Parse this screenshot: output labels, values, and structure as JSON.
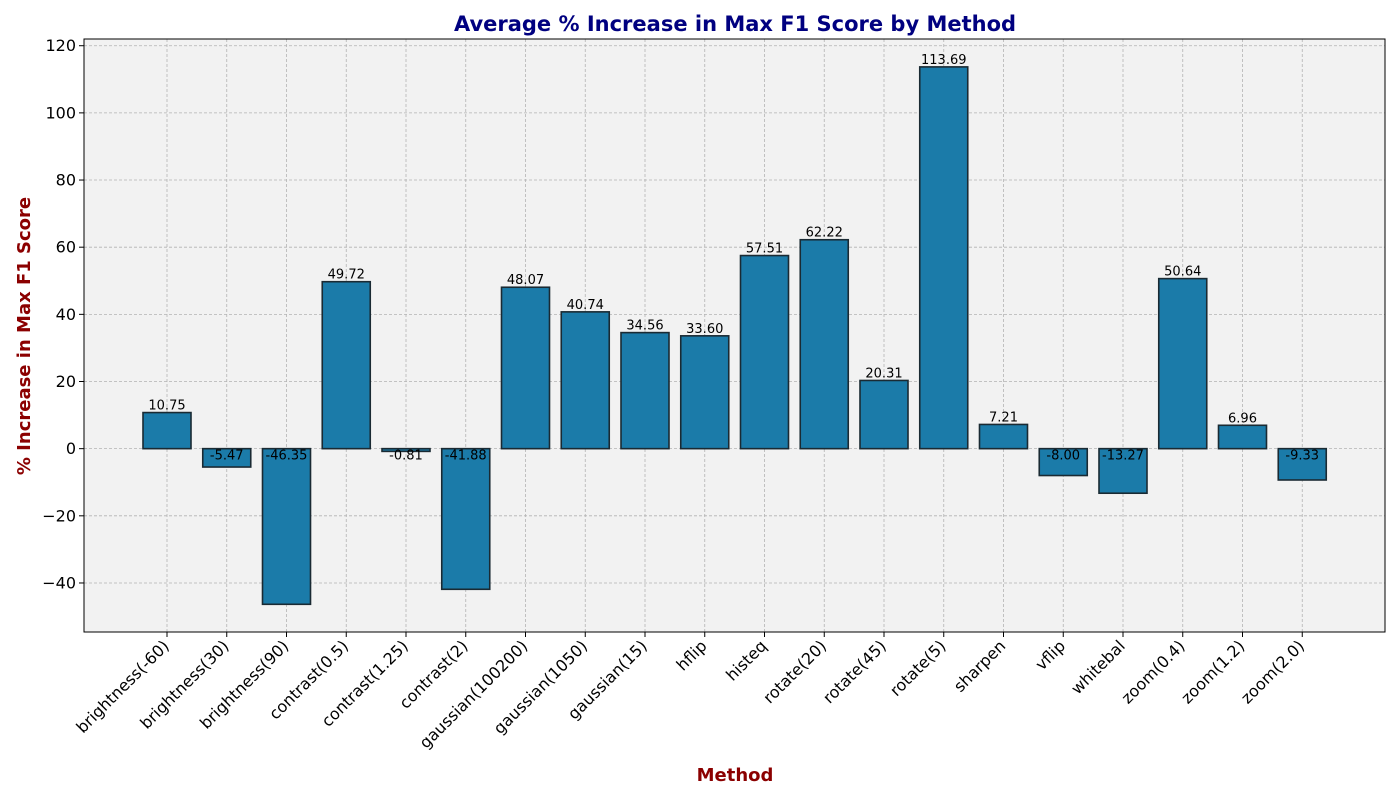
{
  "chart_data": {
    "type": "bar",
    "title": "Average % Increase in Max F1 Score by Method",
    "xlabel": "Method",
    "ylabel": "% Increase in Max F1 Score",
    "categories": [
      "brightness(-60)",
      "brightness(30)",
      "brightness(90)",
      "contrast(0.5)",
      "contrast(1.25)",
      "contrast(2)",
      "gaussian(100200)",
      "gaussian(1050)",
      "gaussian(15)",
      "hflip",
      "histeq",
      "rotate(20)",
      "rotate(45)",
      "rotate(5)",
      "sharpen",
      "vflip",
      "whitebal",
      "zoom(0.4)",
      "zoom(1.2)",
      "zoom(2.0)"
    ],
    "values": [
      10.75,
      -5.47,
      -46.35,
      49.72,
      -0.81,
      -41.88,
      48.07,
      40.74,
      34.56,
      33.6,
      57.51,
      62.22,
      20.31,
      113.69,
      7.21,
      -8.0,
      -13.27,
      50.64,
      6.96,
      -9.33
    ],
    "value_labels": [
      "10.75",
      "-5.47",
      "-46.35",
      "49.72",
      "-0.81",
      "-41.88",
      "48.07",
      "40.74",
      "34.56",
      "33.60",
      "57.51",
      "62.22",
      "20.31",
      "113.69",
      "7.21",
      "-8.00",
      "-13.27",
      "50.64",
      "6.96",
      "-9.33"
    ],
    "yticks": [
      -40,
      -20,
      0,
      20,
      40,
      60,
      80,
      100,
      120
    ],
    "ytick_labels": [
      "−40",
      "−20",
      "0",
      "20",
      "40",
      "60",
      "80",
      "100",
      "120"
    ],
    "ylim": [
      -54.6,
      122.0
    ],
    "grid": true,
    "colors": {
      "bar": "#1b7ba9",
      "bar_edge": "#1a2a33",
      "plot_background": "#f2f2f2",
      "grid": "#b3b3b3",
      "title": "#000080",
      "axis_label": "#8b0000"
    }
  }
}
